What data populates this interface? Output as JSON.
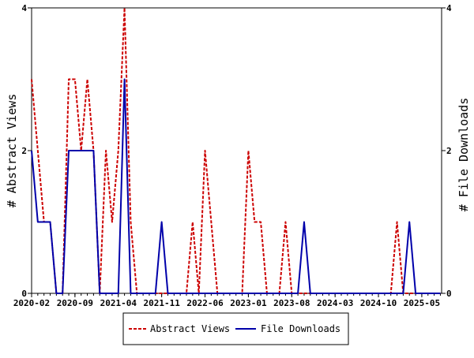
{
  "chart_data": {
    "type": "line",
    "xlabel": "",
    "ylabel_left": "# Abstract Views",
    "ylabel_right": "# File Downloads",
    "ylim_left": [
      0,
      4
    ],
    "ylim_right": [
      0,
      4
    ],
    "yticks_left": [
      0,
      2,
      4
    ],
    "yticks_right": [
      0,
      2,
      4
    ],
    "x_ticks": [
      "2020-02",
      "2020-09",
      "2021-04",
      "2021-11",
      "2022-06",
      "2023-01",
      "2023-08",
      "2024-03",
      "2024-10",
      "2025-05"
    ],
    "x": [
      "2020-02",
      "2020-03",
      "2020-04",
      "2020-05",
      "2020-06",
      "2020-07",
      "2020-08",
      "2020-09",
      "2020-10",
      "2020-11",
      "2020-12",
      "2021-01",
      "2021-02",
      "2021-03",
      "2021-04",
      "2021-05",
      "2021-06",
      "2021-07",
      "2021-08",
      "2021-09",
      "2021-10",
      "2021-11",
      "2021-12",
      "2022-01",
      "2022-02",
      "2022-03",
      "2022-04",
      "2022-05",
      "2022-06",
      "2022-07",
      "2022-08",
      "2022-09",
      "2022-10",
      "2022-11",
      "2022-12",
      "2023-01",
      "2023-02",
      "2023-03",
      "2023-04",
      "2023-05",
      "2023-06",
      "2023-07",
      "2023-08",
      "2023-09",
      "2023-10",
      "2023-11",
      "2023-12",
      "2024-01",
      "2024-02",
      "2024-03",
      "2024-04",
      "2024-05",
      "2024-06",
      "2024-07",
      "2024-08",
      "2024-09",
      "2024-10",
      "2024-11",
      "2024-12",
      "2025-01",
      "2025-02",
      "2025-03",
      "2025-04",
      "2025-05",
      "2025-06",
      "2025-07",
      "2025-08"
    ],
    "series": [
      {
        "name": "Abstract Views",
        "color": "#cc0000",
        "axis": "left",
        "style": "dashed",
        "values": [
          3,
          2,
          1,
          1,
          0,
          0,
          3,
          3,
          2,
          3,
          2,
          0,
          2,
          1,
          2,
          4,
          1,
          0,
          0,
          0,
          0,
          0,
          0,
          0,
          0,
          0,
          1,
          0,
          2,
          1,
          0,
          0,
          0,
          0,
          0,
          2,
          1,
          1,
          0,
          0,
          0,
          1,
          0,
          0,
          0,
          0,
          0,
          0,
          0,
          0,
          0,
          0,
          0,
          0,
          0,
          0,
          0,
          0,
          0,
          1,
          0,
          0,
          0,
          0,
          0,
          0,
          0
        ]
      },
      {
        "name": "File Downloads",
        "color": "#0000aa",
        "axis": "right",
        "style": "solid",
        "values": [
          2,
          1,
          1,
          1,
          0,
          0,
          2,
          2,
          2,
          2,
          2,
          0,
          0,
          0,
          0,
          3,
          0,
          0,
          0,
          0,
          0,
          1,
          0,
          0,
          0,
          0,
          0,
          0,
          0,
          0,
          0,
          0,
          0,
          0,
          0,
          0,
          0,
          0,
          0,
          0,
          0,
          0,
          0,
          0,
          1,
          0,
          0,
          0,
          0,
          0,
          0,
          0,
          0,
          0,
          0,
          0,
          0,
          0,
          0,
          0,
          0,
          1,
          0,
          0,
          0,
          0,
          0
        ]
      }
    ],
    "grid": false,
    "legend_placement": "bottom-center"
  }
}
